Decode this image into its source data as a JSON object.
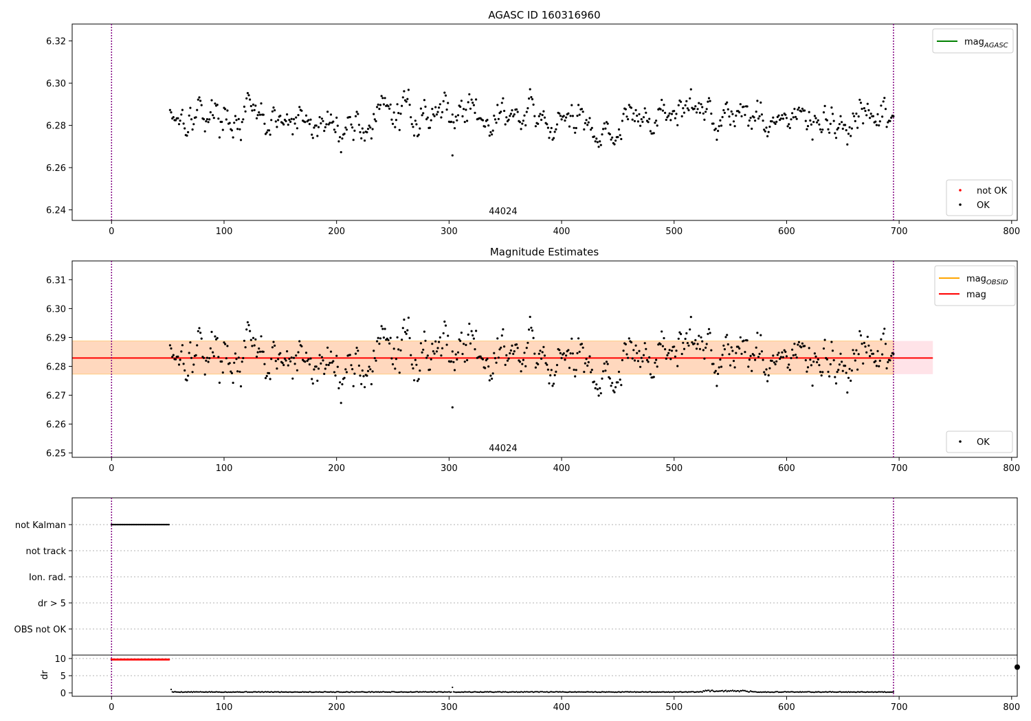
{
  "chart_data": [
    {
      "type": "scatter",
      "title": "AGASC ID 160316960",
      "xlim": [
        -35,
        805
      ],
      "ylim": [
        6.235,
        6.328
      ],
      "xticks": [
        0,
        100,
        200,
        300,
        400,
        500,
        600,
        700,
        800
      ],
      "yticks": [
        6.24,
        6.26,
        6.28,
        6.3,
        6.32
      ],
      "ytick_labels": [
        "6.24",
        "6.26",
        "6.28",
        "6.30",
        "6.32"
      ],
      "vlines": [
        0,
        695
      ],
      "annotation": {
        "text": "44024",
        "x": 348
      },
      "legend_lines": [
        {
          "label": "mag",
          "sub": "AGASC",
          "color": "#008000"
        }
      ],
      "legend_points": [
        {
          "label": "not OK",
          "color": "#ff0000"
        },
        {
          "label": "OK",
          "color": "#000000"
        }
      ],
      "series": [
        {
          "name": "OK",
          "color": "#000000",
          "x_start": 52,
          "x_end": 695,
          "mean": 6.2832,
          "std": 0.0058,
          "seed": 17
        }
      ]
    },
    {
      "type": "scatter",
      "title": "Magnitude Estimates",
      "xlim": [
        -35,
        805
      ],
      "ylim": [
        6.2485,
        6.3165
      ],
      "xticks": [
        0,
        100,
        200,
        300,
        400,
        500,
        600,
        700,
        800
      ],
      "yticks": [
        6.25,
        6.26,
        6.27,
        6.28,
        6.29,
        6.3,
        6.31
      ],
      "ytick_labels": [
        "6.25",
        "6.26",
        "6.27",
        "6.28",
        "6.29",
        "6.30",
        "6.31"
      ],
      "vlines": [
        0,
        695
      ],
      "annotation": {
        "text": "44024",
        "x": 348
      },
      "mag": 6.2829,
      "mag_band": [
        6.2773,
        6.2888
      ],
      "mag_extent": [
        -35,
        730
      ],
      "mag_obsid_extent": [
        -35,
        695
      ],
      "legend_lines": [
        {
          "label": "mag",
          "sub": "OBSID",
          "color": "#ffa500"
        },
        {
          "label": "mag",
          "sub": "",
          "color": "#ff0000"
        }
      ],
      "legend_points": [
        {
          "label": "OK",
          "color": "#000000"
        }
      ],
      "series": [
        {
          "name": "OK",
          "color": "#000000",
          "x_start": 52,
          "x_end": 695,
          "mean": 6.2832,
          "std": 0.0058,
          "seed": 17
        }
      ]
    },
    {
      "type": "scatter",
      "xlim": [
        -35,
        805
      ],
      "xticks": [
        0,
        100,
        200,
        300,
        400,
        500,
        600,
        700,
        800
      ],
      "flag_categories": [
        "not Kalman",
        "not track",
        "Ion. rad.",
        "dr > 5",
        "OBS not OK"
      ],
      "flag_not_kalman_range": [
        0,
        51
      ],
      "ylabel": "dr",
      "dr_yticks": [
        0,
        5,
        10
      ],
      "dr_ylim": [
        -1,
        11
      ],
      "dr_red_range": [
        0,
        51
      ],
      "dr_red_value": 9.7,
      "dr_black_range": [
        53,
        695
      ],
      "dr_black_value": 0.25,
      "vlines": [
        0,
        695
      ]
    }
  ]
}
